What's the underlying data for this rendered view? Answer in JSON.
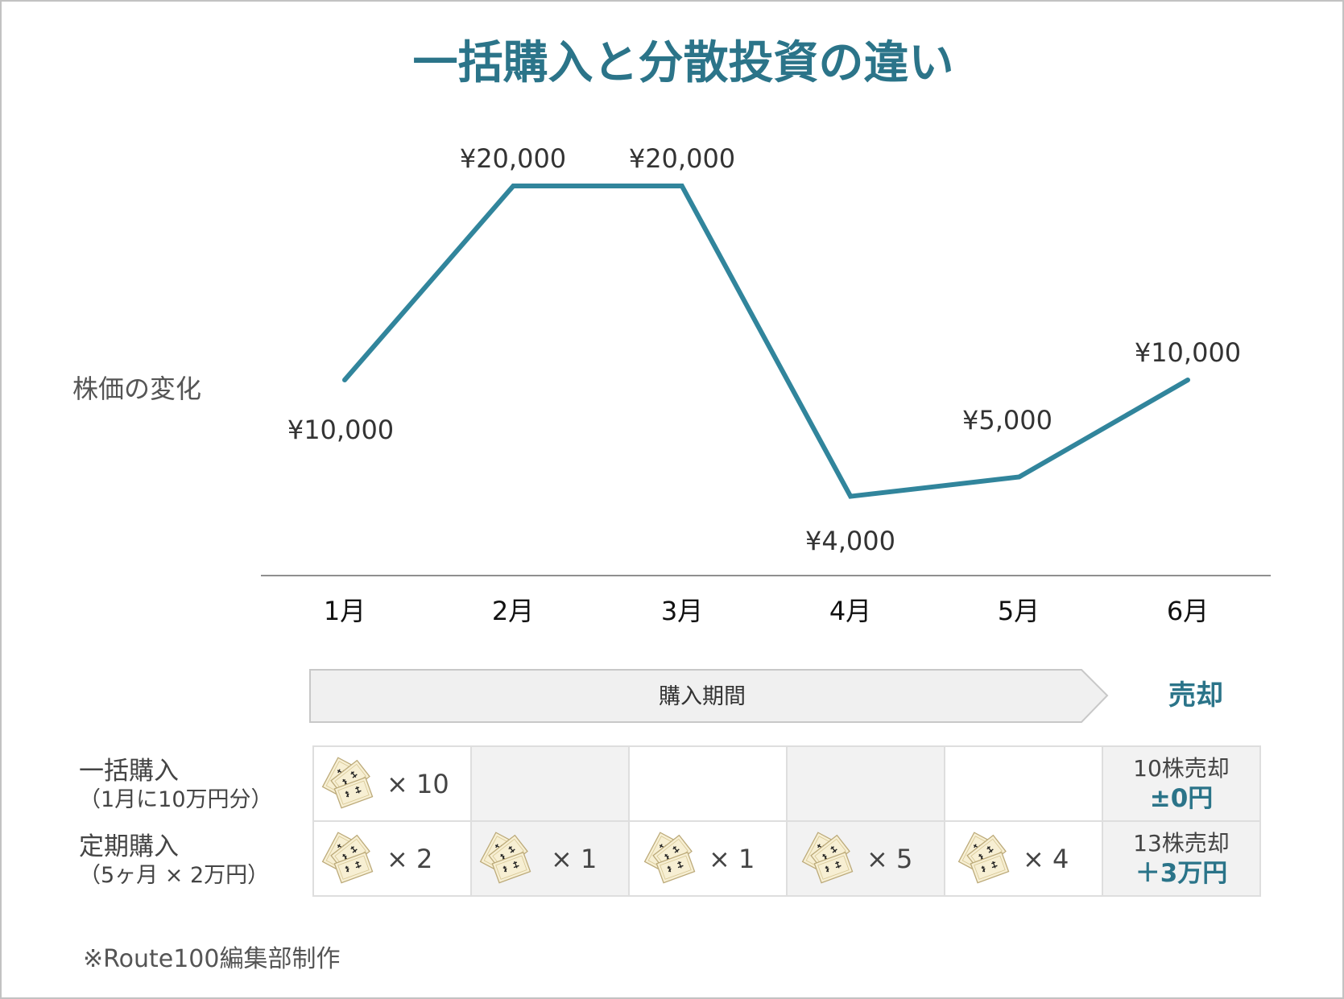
{
  "title": "一括購入と分散投資の違い",
  "chart_data": {
    "type": "line",
    "title": "一括購入と分散投資の違い",
    "xlabel": "",
    "ylabel": "株価の変化",
    "categories": [
      "1月",
      "2月",
      "3月",
      "4月",
      "5月",
      "6月"
    ],
    "values": [
      10000,
      20000,
      20000,
      4000,
      5000,
      10000
    ],
    "data_labels": [
      "¥10,000",
      "¥20,000",
      "¥20,000",
      "¥4,000",
      "¥5,000",
      "¥10,000"
    ],
    "ylim": [
      0,
      20000
    ],
    "grid": false,
    "legend": null,
    "series_color": "#31859c"
  },
  "timeline": {
    "purchase_period": "購入期間",
    "sell": "売却"
  },
  "table": {
    "rows": [
      {
        "label": "一括購入",
        "sublabel": "（1月に10万円分）",
        "purchases": [
          "× 10",
          "",
          "",
          "",
          ""
        ],
        "sell_count": "10株売却",
        "sell_result": "±0円"
      },
      {
        "label": "定期購入",
        "sublabel": "（5ヶ月 × 2万円）",
        "purchases": [
          "× 2",
          "× 1",
          "× 1",
          "× 5",
          "× 4"
        ],
        "sell_count": "13株売却",
        "sell_result": "＋3万円"
      }
    ]
  },
  "icons": {
    "stock_certificate": "stock-certificate-icon"
  },
  "footnote": "※Route100編集部制作",
  "colors": {
    "accent": "#2b7489",
    "line": "#31859c",
    "cell_gray": "#f2f2f2",
    "arrow_fill": "#f0f0f0",
    "border": "#dedede"
  }
}
